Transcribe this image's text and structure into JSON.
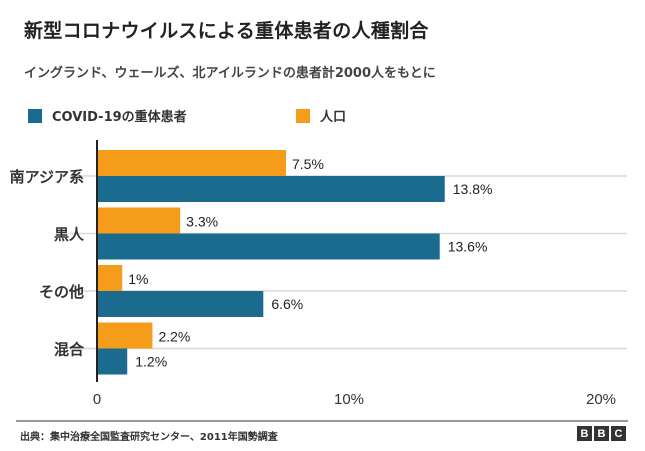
{
  "title": "新型コロナウイルスによる重体患者の人種割合",
  "subtitle": "イングランド、ウェールズ、北アイルランドの患者計2000人をもとに",
  "footer": {
    "source": "出典：集中治療全国監査研究センター、2011年国勢調査",
    "logo_letters": [
      "B",
      "B",
      "C"
    ]
  },
  "colors": {
    "covid": "#1b6b8f",
    "population": "#f59c1a",
    "grid": "#d9d9d9",
    "axis": "#222222"
  },
  "chart_data": {
    "type": "bar",
    "orientation": "horizontal",
    "title": "新型コロナウイルスによる重体患者の人種割合",
    "subtitle": "イングランド、ウェールズ、北アイルランドの患者計2000人をもとに",
    "categories": [
      "南アジア系",
      "黒人",
      "その他",
      "混合"
    ],
    "series": [
      {
        "name": "人口",
        "values": [
          7.5,
          3.3,
          1,
          2.2
        ],
        "labels": [
          "7.5%",
          "3.3%",
          "1%",
          "2.2%"
        ]
      },
      {
        "name": "COVID-19の重体患者",
        "values": [
          13.8,
          13.6,
          6.6,
          1.2
        ],
        "labels": [
          "13.8%",
          "13.6%",
          "6.6%",
          "1.2%"
        ]
      }
    ],
    "legend": [
      "COVID-19の重体患者",
      "人口"
    ],
    "legend_position": "top-left",
    "xlim": [
      0,
      20
    ],
    "xticks": [
      0,
      10,
      20
    ],
    "xtick_labels": [
      "0",
      "10%",
      "20%"
    ],
    "xlabel": "",
    "ylabel": "",
    "grid": true
  }
}
